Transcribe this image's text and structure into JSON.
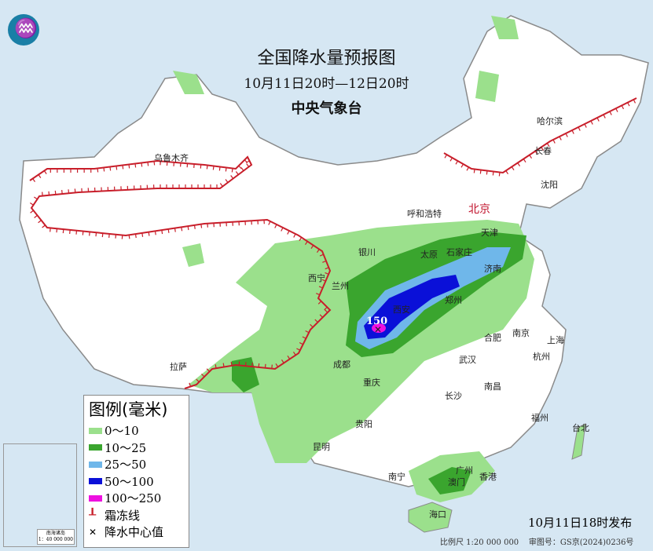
{
  "title": {
    "main": "全国降水量预报图",
    "period": "10月11日20时—12日20时",
    "issuer": "中央气象台"
  },
  "legend": {
    "title": "图例(毫米)",
    "items": [
      {
        "label": "0～10",
        "color": "#9be08c"
      },
      {
        "label": "10～25",
        "color": "#3aa52e"
      },
      {
        "label": "25～50",
        "color": "#6fb7ea"
      },
      {
        "label": "50～100",
        "color": "#0a10d8"
      },
      {
        "label": "100～250",
        "color": "#ee10e0"
      },
      {
        "label": "霜冻线",
        "icon": "frost-line-icon",
        "color": "#c81e2a"
      },
      {
        "label": "降水中心值",
        "icon": "cross-icon"
      }
    ]
  },
  "cities": [
    "乌鲁木齐",
    "哈尔滨",
    "长春",
    "沈阳",
    "呼和浩特",
    "北京",
    "天津",
    "银川",
    "太原",
    "石家庄",
    "济南",
    "西宁",
    "兰州",
    "郑州",
    "西安",
    "合肥",
    "南京",
    "上海",
    "成都",
    "武汉",
    "杭州",
    "拉萨",
    "重庆",
    "长沙",
    "南昌",
    "贵阳",
    "福州",
    "台北",
    "昆明",
    "南宁",
    "广州",
    "澳门",
    "香港",
    "海口"
  ],
  "precip_center": {
    "value": "150"
  },
  "inset": {
    "scale": "1：40 000 000",
    "title": "南海诸岛"
  },
  "issue_time": "10月11日18时发布",
  "footer": {
    "scale": "比例尺 1:20 000 000",
    "map_no": "审图号：GS京(2024)0236号"
  },
  "colors": {
    "sea": "#d6e7f3",
    "land": "#ffffff",
    "border": "#8a8a8a",
    "frost_line": "#c81e2a"
  }
}
